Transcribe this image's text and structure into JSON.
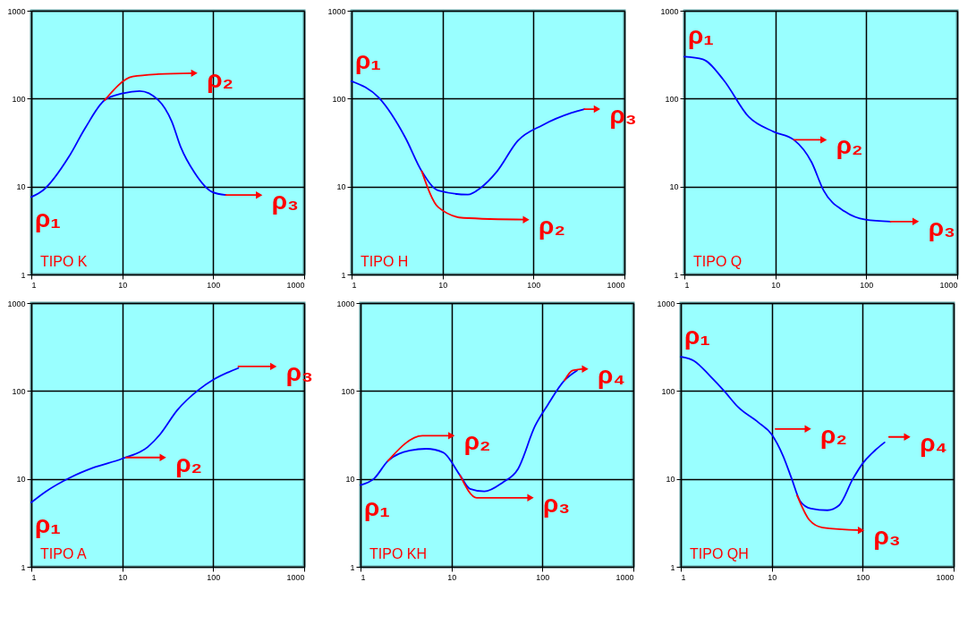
{
  "chart_data": [
    {
      "type": "line",
      "log": "xy",
      "xlim": [
        1,
        1000
      ],
      "ylim": [
        1,
        1000
      ],
      "xticks": [
        1,
        10,
        100,
        1000
      ],
      "yticks": [
        1,
        10,
        100,
        1000
      ],
      "grid": true,
      "series": [
        {
          "color": "#0000ff",
          "x": [
            1,
            1.35,
            2.6,
            3.9,
            6.4,
            10.2,
            15.5,
            25,
            35,
            44,
            62,
            97,
            138
          ],
          "values": [
            7.6,
            9.1,
            22,
            46,
            96,
            115,
            122,
            96,
            55,
            28,
            14.5,
            8.7,
            8.0
          ]
        },
        {
          "color": "#ff0000",
          "x": [
            6.4,
            13,
            25,
            62
          ],
          "values": [
            96,
            178,
            190,
            195
          ]
        },
        {
          "color": "#ff0000",
          "x": [
            138,
            320
          ],
          "values": [
            8.0,
            8.0
          ]
        }
      ],
      "annotations": [
        "TIPO K",
        "ρ₁",
        "ρ₂",
        "ρ₃"
      ]
    },
    {
      "type": "line",
      "log": "xy",
      "xlim": [
        1,
        1000
      ],
      "ylim": [
        1,
        1000
      ],
      "xticks": [
        1,
        10,
        100,
        1000
      ],
      "yticks": [
        1,
        10,
        100,
        1000
      ],
      "grid": true,
      "series": [
        {
          "color": "#0000ff",
          "x": [
            1,
            2,
            3.9,
            5.9,
            9,
            19,
            26,
            40,
            67,
            126,
            263,
            363
          ],
          "values": [
            158,
            102,
            36,
            15,
            9,
            8.1,
            9.6,
            15,
            33,
            50,
            69,
            76
          ]
        },
        {
          "color": "#ff0000",
          "x": [
            5.9,
            9,
            17,
            83
          ],
          "values": [
            15,
            5.8,
            4.4,
            4.2
          ]
        },
        {
          "color": "#ff0000",
          "x": [
            363,
            500
          ],
          "values": [
            76,
            76
          ]
        }
      ],
      "annotations": [
        "TIPO H",
        "ρ₁",
        "ρ₂",
        "ρ₃"
      ]
    },
    {
      "type": "line",
      "log": "xy",
      "xlim": [
        1,
        1000
      ],
      "ylim": [
        1,
        1000
      ],
      "xticks": [
        1,
        10,
        100,
        1000
      ],
      "yticks": [
        1,
        10,
        100,
        1000
      ],
      "grid": true,
      "series": [
        {
          "color": "#0000ff",
          "x": [
            1,
            1.6,
            2.7,
            5.1,
            9.6,
            16,
            25,
            34,
            58,
            98,
            185
          ],
          "values": [
            300,
            280,
            163,
            62,
            42,
            34,
            19,
            9,
            5.2,
            4.2,
            4
          ]
        },
        {
          "color": "#ff0000",
          "x": [
            16,
            34
          ],
          "values": [
            34,
            34
          ]
        },
        {
          "color": "#ff0000",
          "x": [
            185,
            350
          ],
          "values": [
            4,
            4
          ]
        }
      ],
      "annotations": [
        "TIPO Q",
        "ρ₁",
        "ρ₂",
        "ρ₃"
      ]
    },
    {
      "type": "line",
      "log": "xy",
      "xlim": [
        1,
        1000
      ],
      "ylim": [
        1,
        1000
      ],
      "xticks": [
        1,
        10,
        100,
        1000
      ],
      "yticks": [
        1,
        10,
        100,
        1000
      ],
      "grid": true,
      "series": [
        {
          "color": "#0000ff",
          "x": [
            1,
            1.45,
            2.7,
            4.8,
            10,
            19,
            26,
            40,
            70,
            100,
            189
          ],
          "values": [
            5.4,
            7.2,
            10.4,
            13.4,
            17,
            23,
            32,
            60,
            104,
            134,
            182
          ]
        },
        {
          "color": "#ff0000",
          "x": [
            11,
            28
          ],
          "values": [
            17.5,
            17.5
          ]
        },
        {
          "color": "#ff0000",
          "x": [
            189,
            460
          ],
          "values": [
            190,
            190
          ]
        }
      ],
      "annotations": [
        "TIPO A",
        "ρ₁",
        "ρ₂",
        "ρ₃"
      ]
    },
    {
      "type": "line",
      "log": "xy",
      "xlim": [
        1,
        1000
      ],
      "ylim": [
        1,
        1000
      ],
      "xticks": [
        1,
        10,
        100,
        1000
      ],
      "yticks": [
        1,
        10,
        100,
        1000
      ],
      "grid": true,
      "series": [
        {
          "color": "#0000ff",
          "x": [
            1,
            1.4,
            2,
            3.5,
            5.3,
            8.1,
            12.4,
            16,
            23,
            36,
            54,
            83,
            114,
            175,
            240
          ],
          "values": [
            8.5,
            10,
            16,
            21,
            22,
            20,
            11,
            7.7,
            7.2,
            9,
            13,
            40,
            69,
            132,
            171
          ]
        },
        {
          "color": "#ff0000",
          "x": [
            2,
            4.8,
            10
          ],
          "values": [
            16,
            31,
            31
          ]
        },
        {
          "color": "#ff0000",
          "x": [
            12.4,
            19,
            74
          ],
          "values": [
            11,
            6.1,
            6.1
          ]
        },
        {
          "color": "#ff0000",
          "x": [
            175,
            215,
            295
          ],
          "values": [
            132,
            171,
            178
          ]
        }
      ],
      "annotations": [
        "TIPO KH",
        "ρ₁",
        "ρ₂",
        "ρ₃",
        "ρ₄"
      ]
    },
    {
      "type": "line",
      "log": "xy",
      "xlim": [
        1,
        1000
      ],
      "ylim": [
        1,
        1000
      ],
      "xticks": [
        1,
        10,
        100,
        1000
      ],
      "yticks": [
        1,
        10,
        100,
        1000
      ],
      "grid": true,
      "series": [
        {
          "color": "#0000ff",
          "x": [
            1,
            1.4,
            2.1,
            3,
            4.3,
            7.1,
            10,
            13.4,
            16.6,
            20.5,
            27,
            41,
            55,
            78,
            100,
            136,
            174
          ],
          "values": [
            245,
            220,
            148,
            100,
            65,
            44,
            32,
            18,
            10,
            5.6,
            4.6,
            4.4,
            5,
            10,
            15,
            21,
            26
          ]
        },
        {
          "color": "#ff0000",
          "x": [
            11,
            25
          ],
          "values": [
            37,
            37
          ]
        },
        {
          "color": "#ff0000",
          "x": [
            19,
            26,
            36,
            96
          ],
          "values": [
            6.5,
            3.4,
            2.8,
            2.6
          ]
        },
        {
          "color": "#ff0000",
          "x": [
            195,
            309
          ],
          "values": [
            30,
            30
          ]
        }
      ],
      "annotations": [
        "TIPO QH",
        "ρ₁",
        "ρ₂",
        "ρ₃",
        "ρ₄"
      ]
    }
  ]
}
